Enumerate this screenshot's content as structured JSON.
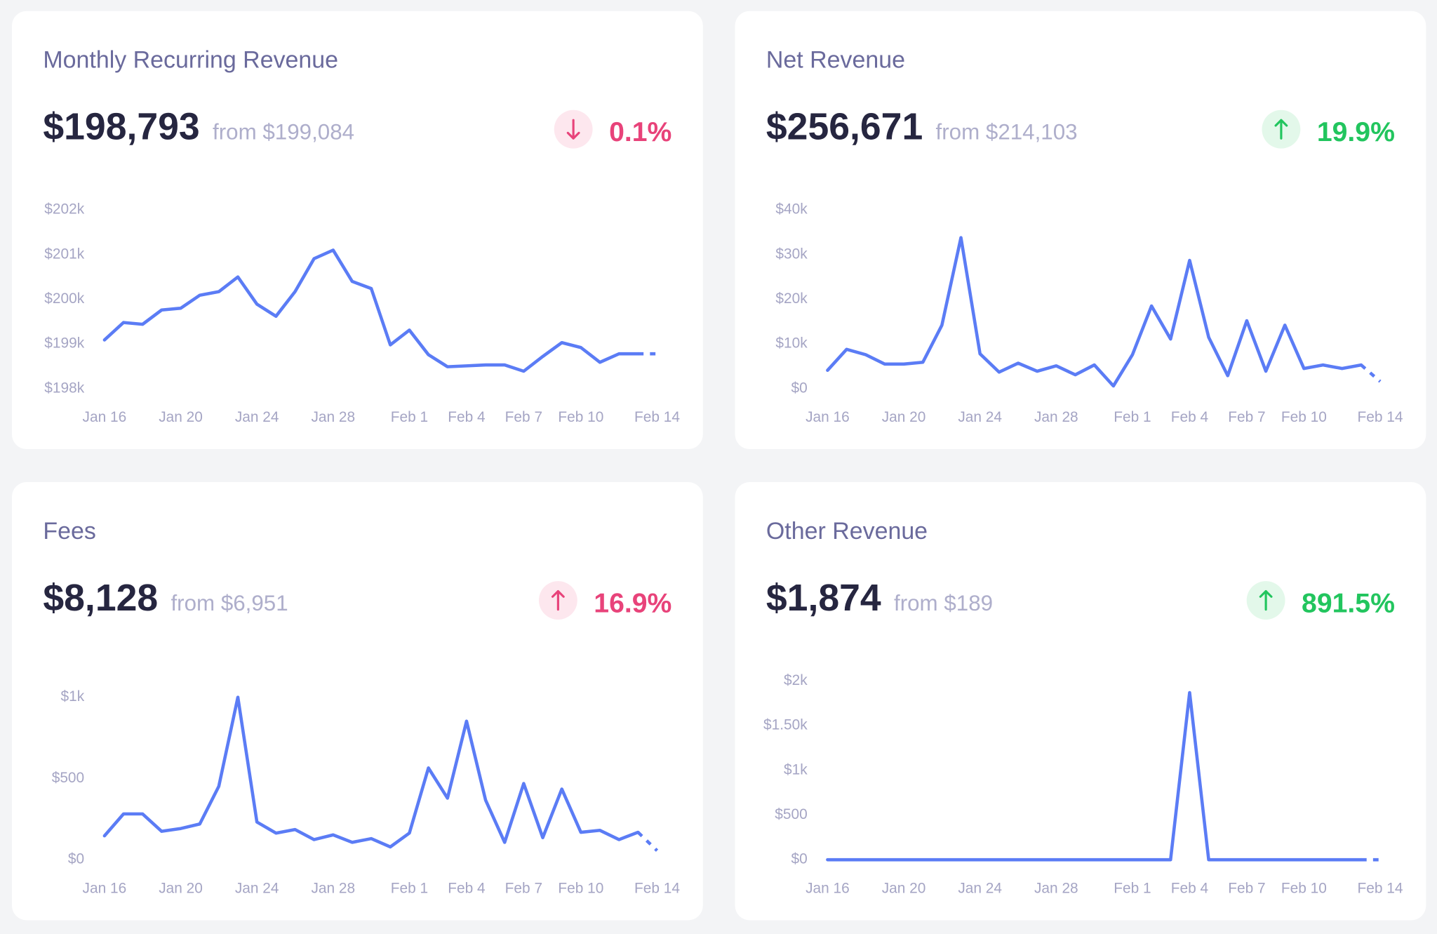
{
  "chart_data": [
    {
      "type": "line",
      "title": "Monthly Recurring Revenue",
      "headline": "$198,793",
      "comparison": "from $199,084",
      "change": "0.1%",
      "change_direction": "down",
      "change_color": "#e8437a",
      "change_background": "#fde7ee",
      "color": "#5b7cf5",
      "last_segment_dashed": true,
      "categories": [
        "Jan 16",
        null,
        null,
        null,
        "Jan 20",
        null,
        null,
        null,
        "Jan 24",
        null,
        null,
        null,
        "Jan 28",
        null,
        null,
        null,
        "Feb 1",
        null,
        null,
        "Feb 4",
        null,
        null,
        "Feb 7",
        null,
        null,
        "Feb 10",
        null,
        null,
        null,
        "Feb 14"
      ],
      "values": [
        199090,
        199480,
        199440,
        199760,
        199800,
        200090,
        200170,
        200500,
        199890,
        199620,
        200170,
        200910,
        201100,
        200400,
        200240,
        198980,
        199310,
        198760,
        198490,
        198510,
        198530,
        198530,
        198390,
        198720,
        199030,
        198920,
        198590,
        198780,
        198780,
        198780
      ],
      "ylim": [
        198000,
        202000
      ],
      "yticks": [
        {
          "value": 198000,
          "label": "$198k"
        },
        {
          "value": 199000,
          "label": "$199k"
        },
        {
          "value": 200000,
          "label": "$200k"
        },
        {
          "value": 201000,
          "label": "$201k"
        },
        {
          "value": 202000,
          "label": "$202k"
        }
      ]
    },
    {
      "type": "line",
      "title": "Net Revenue",
      "headline": "$256,671",
      "comparison": "from $214,103",
      "change": "19.9%",
      "change_direction": "up",
      "change_color": "#22c55e",
      "change_background": "#e3f8ea",
      "color": "#5b7cf5",
      "last_segment_dashed": true,
      "categories": [
        "Jan 16",
        null,
        null,
        null,
        "Jan 20",
        null,
        null,
        null,
        "Jan 24",
        null,
        null,
        null,
        "Jan 28",
        null,
        null,
        null,
        "Feb 1",
        null,
        null,
        "Feb 4",
        null,
        null,
        "Feb 7",
        null,
        null,
        "Feb 10",
        null,
        null,
        null,
        "Feb 14"
      ],
      "values": [
        4100,
        8800,
        7600,
        5500,
        5500,
        5900,
        14200,
        33800,
        7800,
        3700,
        5700,
        3900,
        5100,
        3100,
        5300,
        600,
        7600,
        18500,
        11100,
        28700,
        11500,
        2900,
        15200,
        3900,
        14200,
        4500,
        5300,
        4500,
        5300,
        1600
      ],
      "ylim": [
        0,
        40000
      ],
      "yticks": [
        {
          "value": 0,
          "label": "$0"
        },
        {
          "value": 10000,
          "label": "$10k"
        },
        {
          "value": 20000,
          "label": "$20k"
        },
        {
          "value": 30000,
          "label": "$30k"
        },
        {
          "value": 40000,
          "label": "$40k"
        }
      ]
    },
    {
      "type": "line",
      "title": "Fees",
      "headline": "$8,128",
      "comparison": "from $6,951",
      "change": "16.9%",
      "change_direction": "up",
      "change_color": "#e8437a",
      "change_background": "#fde7ee",
      "color": "#5b7cf5",
      "last_segment_dashed": true,
      "categories": [
        "Jan 16",
        null,
        null,
        null,
        "Jan 20",
        null,
        null,
        null,
        "Jan 24",
        null,
        null,
        null,
        "Jan 28",
        null,
        null,
        null,
        "Feb 1",
        null,
        null,
        "Feb 4",
        null,
        null,
        "Feb 7",
        null,
        null,
        "Feb 10",
        null,
        null,
        null,
        "Feb 14"
      ],
      "values": [
        147,
        282,
        282,
        175,
        192,
        220,
        452,
        1000,
        232,
        164,
        186,
        124,
        153,
        107,
        130,
        79,
        164,
        565,
        379,
        853,
        367,
        107,
        469,
        136,
        435,
        169,
        181,
        124,
        169,
        56
      ],
      "ylim": [
        0,
        1100
      ],
      "yticks": [
        {
          "value": 0,
          "label": "$0"
        },
        {
          "value": 500,
          "label": "$500"
        },
        {
          "value": 1000,
          "label": "$1k"
        }
      ]
    },
    {
      "type": "line",
      "title": "Other Revenue",
      "headline": "$1,874",
      "comparison": "from $189",
      "change": "891.5%",
      "change_direction": "up",
      "change_color": "#22c55e",
      "change_background": "#e3f8ea",
      "color": "#5b7cf5",
      "last_segment_dashed": true,
      "categories": [
        "Jan 16",
        null,
        null,
        null,
        "Jan 20",
        null,
        null,
        null,
        "Jan 24",
        null,
        null,
        null,
        "Jan 28",
        null,
        null,
        null,
        "Feb 1",
        null,
        null,
        "Feb 4",
        null,
        null,
        "Feb 7",
        null,
        null,
        "Feb 10",
        null,
        null,
        null,
        "Feb 14"
      ],
      "values": [
        0,
        0,
        0,
        0,
        0,
        0,
        0,
        0,
        0,
        0,
        0,
        0,
        0,
        0,
        0,
        0,
        0,
        0,
        0,
        1870,
        0,
        0,
        0,
        0,
        0,
        0,
        0,
        0,
        0,
        0
      ],
      "ylim": [
        0,
        2000
      ],
      "yticks": [
        {
          "value": 0,
          "label": "$0"
        },
        {
          "value": 500,
          "label": "$500"
        },
        {
          "value": 1000,
          "label": "$1k"
        },
        {
          "value": 1500,
          "label": "$1.50k"
        },
        {
          "value": 2000,
          "label": "$2k"
        }
      ]
    }
  ]
}
